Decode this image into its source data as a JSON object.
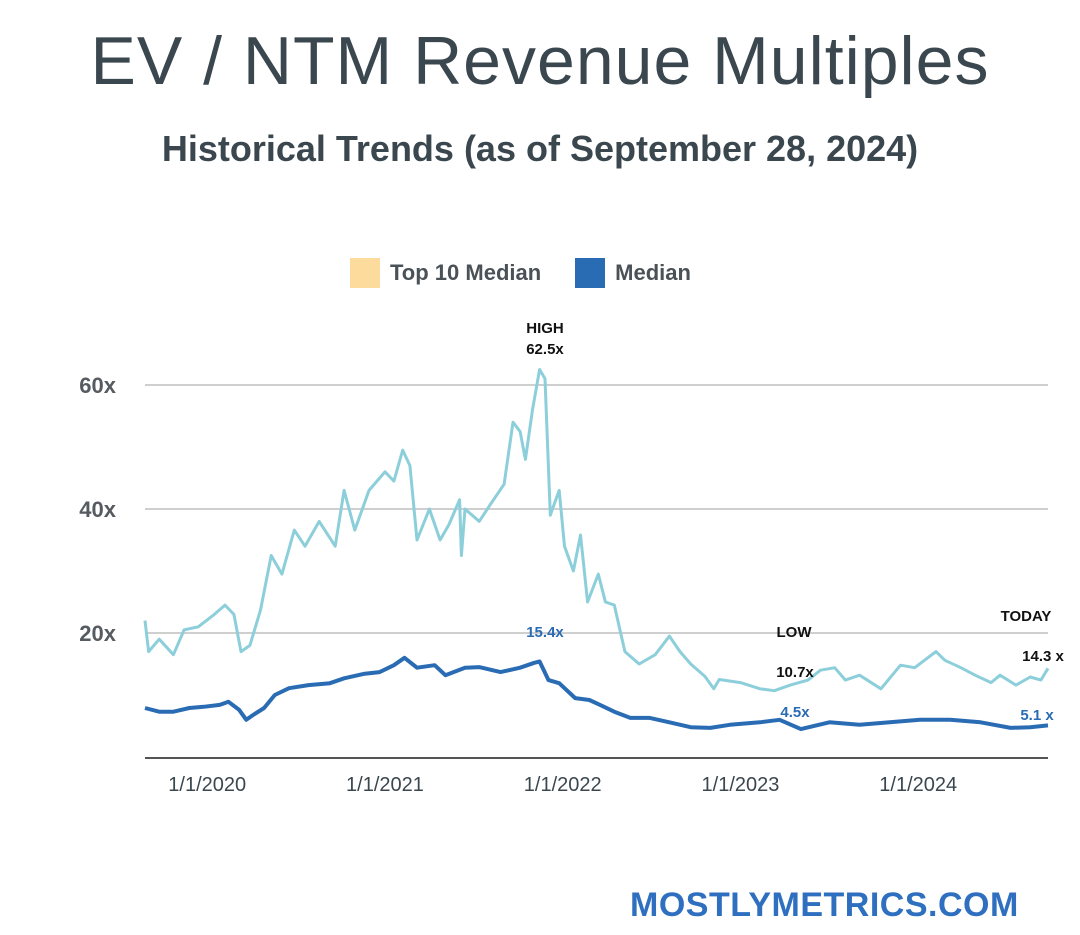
{
  "chart_data": {
    "type": "line",
    "title": "EV / NTM Revenue Multiples",
    "subtitle": "Historical Trends (as of  September 28, 2024)",
    "xlabel": "",
    "ylabel": "",
    "xlim": [
      2019.65,
      2024.73
    ],
    "ylim": [
      0,
      60
    ],
    "grid": true,
    "legend_position": "top-center",
    "y_ticks": [
      {
        "value": 20,
        "label": "20x"
      },
      {
        "value": 40,
        "label": "40x"
      },
      {
        "value": 60,
        "label": "60x"
      }
    ],
    "x_ticks": [
      {
        "value": 2020,
        "label": "1/1/2020"
      },
      {
        "value": 2021,
        "label": "1/1/2021"
      },
      {
        "value": 2022,
        "label": "1/1/2022"
      },
      {
        "value": 2023,
        "label": "1/1/2023"
      },
      {
        "value": 2024,
        "label": "1/1/2024"
      }
    ],
    "series": [
      {
        "name": "Top 10 Median",
        "color": "#8ccfdb",
        "legend_color": "#fddb9c",
        "x": [
          2019.65,
          2019.67,
          2019.73,
          2019.81,
          2019.87,
          2019.95,
          2020.04,
          2020.1,
          2020.15,
          2020.19,
          2020.24,
          2020.3,
          2020.36,
          2020.42,
          2020.49,
          2020.55,
          2020.63,
          2020.72,
          2020.77,
          2020.83,
          2020.91,
          2021.0,
          2021.05,
          2021.1,
          2021.14,
          2021.18,
          2021.25,
          2021.31,
          2021.36,
          2021.42,
          2021.43,
          2021.45,
          2021.53,
          2021.59,
          2021.67,
          2021.72,
          2021.76,
          2021.79,
          2021.83,
          2021.87,
          2021.9,
          2021.93,
          2021.95,
          2021.98,
          2022.01,
          2022.06,
          2022.1,
          2022.14,
          2022.2,
          2022.24,
          2022.29,
          2022.35,
          2022.43,
          2022.52,
          2022.6,
          2022.66,
          2022.72,
          2022.8,
          2022.85,
          2022.88,
          2023.0,
          2023.11,
          2023.19,
          2023.28,
          2023.38,
          2023.45,
          2023.53,
          2023.59,
          2023.67,
          2023.79,
          2023.9,
          2023.98,
          2024.1,
          2024.15,
          2024.24,
          2024.32,
          2024.41,
          2024.46,
          2024.55,
          2024.63,
          2024.69,
          2024.73
        ],
        "values": [
          22,
          17,
          19,
          16.5,
          20.5,
          21,
          23,
          24.5,
          23,
          17,
          18,
          23.7,
          32.5,
          29.5,
          36.6,
          34,
          38,
          34,
          43,
          36.6,
          43,
          46,
          44.5,
          49.5,
          47,
          35,
          40,
          35,
          37.5,
          41.5,
          32.5,
          40,
          38,
          40.6,
          44,
          54,
          52.5,
          48,
          56,
          62.5,
          61,
          39,
          40.6,
          43,
          34,
          30,
          35.8,
          25,
          29.5,
          25,
          24.5,
          17,
          15,
          16.5,
          19.5,
          17,
          15,
          13,
          11,
          12.5,
          12,
          11,
          10.7,
          11.6,
          12.4,
          14,
          14.4,
          12.4,
          13.2,
          11,
          14.8,
          14.4,
          17,
          15.6,
          14.4,
          13.2,
          12,
          13.2,
          11.6,
          12.9,
          12.4,
          14.3
        ]
      },
      {
        "name": "Median",
        "color": "#2a6cb4",
        "legend_color": "#2a6cb4",
        "x": [
          2019.65,
          2019.73,
          2019.81,
          2019.9,
          2019.98,
          2020.07,
          2020.12,
          2020.18,
          2020.22,
          2020.26,
          2020.32,
          2020.38,
          2020.46,
          2020.57,
          2020.69,
          2020.77,
          2020.88,
          2020.97,
          2021.05,
          2021.11,
          2021.18,
          2021.28,
          2021.34,
          2021.45,
          2021.53,
          2021.65,
          2021.76,
          2021.84,
          2021.87,
          2021.92,
          2021.98,
          2022.07,
          2022.15,
          2022.21,
          2022.29,
          2022.38,
          2022.49,
          2022.6,
          2022.72,
          2022.83,
          2022.94,
          2023.11,
          2023.22,
          2023.34,
          2023.5,
          2023.67,
          2023.84,
          2024.01,
          2024.18,
          2024.35,
          2024.52,
          2024.63,
          2024.73
        ],
        "values": [
          7.9,
          7.3,
          7.3,
          7.9,
          8.1,
          8.4,
          8.9,
          7.6,
          6,
          6.8,
          7.9,
          10,
          11.1,
          11.6,
          11.9,
          12.7,
          13.4,
          13.7,
          14.8,
          16,
          14.4,
          14.8,
          13.2,
          14.4,
          14.5,
          13.7,
          14.4,
          15.2,
          15.4,
          12.4,
          11.9,
          9.5,
          9.2,
          8.4,
          7.3,
          6.3,
          6.3,
          5.6,
          4.8,
          4.7,
          5.2,
          5.6,
          6,
          4.5,
          5.6,
          5.2,
          5.6,
          6,
          6,
          5.6,
          4.7,
          4.8,
          5.1
        ]
      }
    ],
    "annotations": [
      {
        "id": "high",
        "lines": [
          "HIGH",
          "62.5x"
        ],
        "x": 2021.87,
        "value": 62.5,
        "color": "#111111"
      },
      {
        "id": "median-high",
        "lines": [
          "15.4x"
        ],
        "x": 2021.87,
        "value": 15.4,
        "color": "#2a6cb4"
      },
      {
        "id": "low",
        "lines": [
          "LOW",
          "10.7x"
        ],
        "x": 2023.19,
        "value": 10.7,
        "color": "#111111"
      },
      {
        "id": "median-low",
        "lines": [
          "4.5x"
        ],
        "x": 2023.22,
        "value": 4.5,
        "color": "#2a6cb4"
      },
      {
        "id": "today",
        "lines": [
          "TODAY",
          "14.3 x"
        ],
        "x": 2024.73,
        "value": 14.3,
        "color": "#111111"
      },
      {
        "id": "median-today",
        "lines": [
          "5.1 x"
        ],
        "x": 2024.73,
        "value": 5.1,
        "color": "#2a6cb4"
      }
    ]
  },
  "footer": {
    "brand": "MOSTLYMETRICS.COM"
  }
}
